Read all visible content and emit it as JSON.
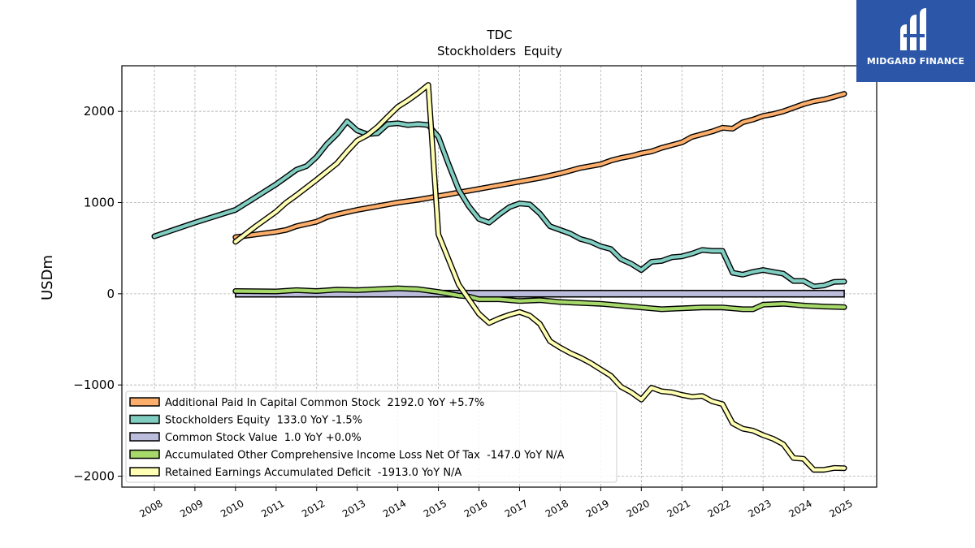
{
  "logo": {
    "text": "MIDGARD FINANCE",
    "icon": "midgard-logo-icon",
    "background": "#2c57a8"
  },
  "chart_data": {
    "type": "line",
    "title": "TDC",
    "subtitle": "Stockholders  Equity",
    "xlabel": "",
    "ylabel": "USDm",
    "xlim": [
      2007.2,
      2025.8
    ],
    "ylim": [
      -2120,
      2500
    ],
    "x_ticks": [
      "2008",
      "2009",
      "2010",
      "2011",
      "2012",
      "2013",
      "2014",
      "2015",
      "2016",
      "2017",
      "2018",
      "2019",
      "2020",
      "2021",
      "2022",
      "2023",
      "2024",
      "2025"
    ],
    "y_ticks": [
      2000,
      1000,
      0,
      -1000,
      -2000
    ],
    "y_tick_labels": [
      "2000",
      "1000",
      "0",
      "−1000",
      "−2000"
    ],
    "grid": true,
    "legend_position": "lower-left",
    "series": [
      {
        "name": "Additional Paid In Capital Common Stock  2192.0 YoY +5.7%",
        "color": "#fdae6b",
        "points": [
          [
            2010.0,
            620
          ],
          [
            2010.5,
            650
          ],
          [
            2011.0,
            680
          ],
          [
            2011.25,
            700
          ],
          [
            2011.5,
            740
          ],
          [
            2012.0,
            790
          ],
          [
            2012.25,
            840
          ],
          [
            2012.5,
            870
          ],
          [
            2012.75,
            895
          ],
          [
            2013.0,
            920
          ],
          [
            2013.5,
            960
          ],
          [
            2013.75,
            980
          ],
          [
            2014.0,
            1000
          ],
          [
            2014.5,
            1030
          ],
          [
            2014.75,
            1050
          ],
          [
            2015.0,
            1070
          ],
          [
            2015.25,
            1090
          ],
          [
            2015.5,
            1110
          ],
          [
            2015.75,
            1130
          ],
          [
            2016.0,
            1150
          ],
          [
            2016.25,
            1170
          ],
          [
            2016.5,
            1190
          ],
          [
            2016.75,
            1210
          ],
          [
            2017.0,
            1230
          ],
          [
            2017.5,
            1270
          ],
          [
            2018.0,
            1320
          ],
          [
            2018.25,
            1350
          ],
          [
            2018.5,
            1380
          ],
          [
            2018.75,
            1400
          ],
          [
            2019.0,
            1420
          ],
          [
            2019.25,
            1460
          ],
          [
            2019.5,
            1490
          ],
          [
            2019.75,
            1510
          ],
          [
            2020.0,
            1540
          ],
          [
            2020.25,
            1560
          ],
          [
            2020.5,
            1600
          ],
          [
            2021.0,
            1660
          ],
          [
            2021.25,
            1720
          ],
          [
            2021.5,
            1750
          ],
          [
            2021.75,
            1780
          ],
          [
            2022.0,
            1820
          ],
          [
            2022.25,
            1810
          ],
          [
            2022.5,
            1880
          ],
          [
            2022.75,
            1910
          ],
          [
            2023.0,
            1950
          ],
          [
            2023.25,
            1970
          ],
          [
            2023.5,
            2000
          ],
          [
            2023.75,
            2040
          ],
          [
            2024.0,
            2080
          ],
          [
            2024.25,
            2110
          ],
          [
            2024.5,
            2130
          ],
          [
            2024.75,
            2160
          ],
          [
            2025.0,
            2192
          ]
        ]
      },
      {
        "name": "Stockholders Equity  133.0 YoY -1.5%",
        "color": "#80cdc1",
        "points": [
          [
            2008.0,
            630
          ],
          [
            2009.0,
            780
          ],
          [
            2010.0,
            920
          ],
          [
            2010.5,
            1060
          ],
          [
            2011.0,
            1200
          ],
          [
            2011.25,
            1280
          ],
          [
            2011.5,
            1360
          ],
          [
            2011.75,
            1400
          ],
          [
            2012.0,
            1500
          ],
          [
            2012.25,
            1640
          ],
          [
            2012.5,
            1750
          ],
          [
            2012.75,
            1890
          ],
          [
            2013.0,
            1790
          ],
          [
            2013.25,
            1750
          ],
          [
            2013.5,
            1760
          ],
          [
            2013.75,
            1860
          ],
          [
            2014.0,
            1870
          ],
          [
            2014.25,
            1850
          ],
          [
            2014.5,
            1860
          ],
          [
            2014.75,
            1850
          ],
          [
            2015.0,
            1720
          ],
          [
            2015.25,
            1420
          ],
          [
            2015.5,
            1140
          ],
          [
            2015.75,
            960
          ],
          [
            2016.0,
            820
          ],
          [
            2016.25,
            780
          ],
          [
            2016.5,
            870
          ],
          [
            2016.75,
            950
          ],
          [
            2017.0,
            990
          ],
          [
            2017.25,
            980
          ],
          [
            2017.5,
            880
          ],
          [
            2017.75,
            740
          ],
          [
            2018.0,
            700
          ],
          [
            2018.25,
            660
          ],
          [
            2018.5,
            600
          ],
          [
            2018.75,
            570
          ],
          [
            2019.0,
            520
          ],
          [
            2019.25,
            490
          ],
          [
            2019.5,
            380
          ],
          [
            2019.75,
            330
          ],
          [
            2020.0,
            260
          ],
          [
            2020.25,
            350
          ],
          [
            2020.5,
            360
          ],
          [
            2020.75,
            400
          ],
          [
            2021.0,
            410
          ],
          [
            2021.25,
            440
          ],
          [
            2021.5,
            480
          ],
          [
            2021.75,
            470
          ],
          [
            2022.0,
            470
          ],
          [
            2022.25,
            230
          ],
          [
            2022.5,
            210
          ],
          [
            2022.75,
            240
          ],
          [
            2023.0,
            260
          ],
          [
            2023.25,
            240
          ],
          [
            2023.5,
            220
          ],
          [
            2023.75,
            140
          ],
          [
            2024.0,
            140
          ],
          [
            2024.25,
            80
          ],
          [
            2024.5,
            90
          ],
          [
            2024.75,
            130
          ],
          [
            2025.0,
            133
          ]
        ]
      },
      {
        "name": "Common Stock Value  1.0 YoY +0.0%",
        "color": "#bcbddc",
        "points": [
          [
            2010.0,
            1
          ],
          [
            2025.0,
            1
          ]
        ]
      },
      {
        "name": "Accumulated Other Comprehensive Income Loss Net Of Tax  -147.0 YoY N/A",
        "color": "#a6d96a",
        "points": [
          [
            2010.0,
            30
          ],
          [
            2011.0,
            25
          ],
          [
            2011.5,
            40
          ],
          [
            2012.0,
            30
          ],
          [
            2012.5,
            45
          ],
          [
            2013.0,
            40
          ],
          [
            2013.5,
            50
          ],
          [
            2014.0,
            60
          ],
          [
            2014.5,
            50
          ],
          [
            2015.0,
            20
          ],
          [
            2015.25,
            0
          ],
          [
            2015.5,
            -20
          ],
          [
            2015.75,
            -30
          ],
          [
            2016.0,
            -60
          ],
          [
            2016.5,
            -60
          ],
          [
            2017.0,
            -80
          ],
          [
            2017.5,
            -70
          ],
          [
            2018.0,
            -90
          ],
          [
            2018.5,
            -100
          ],
          [
            2019.0,
            -110
          ],
          [
            2019.5,
            -130
          ],
          [
            2020.0,
            -150
          ],
          [
            2020.5,
            -170
          ],
          [
            2021.0,
            -160
          ],
          [
            2021.5,
            -150
          ],
          [
            2022.0,
            -150
          ],
          [
            2022.25,
            -160
          ],
          [
            2022.5,
            -170
          ],
          [
            2022.75,
            -170
          ],
          [
            2023.0,
            -120
          ],
          [
            2023.5,
            -110
          ],
          [
            2024.0,
            -130
          ],
          [
            2024.5,
            -140
          ],
          [
            2025.0,
            -147
          ]
        ]
      },
      {
        "name": "Retained Earnings Accumulated Deficit  -1913.0 YoY N/A",
        "color": "#ffffb3",
        "points": [
          [
            2010.0,
            570
          ],
          [
            2010.5,
            740
          ],
          [
            2011.0,
            900
          ],
          [
            2011.25,
            1000
          ],
          [
            2011.5,
            1080
          ],
          [
            2012.0,
            1250
          ],
          [
            2012.5,
            1430
          ],
          [
            2012.75,
            1560
          ],
          [
            2013.0,
            1680
          ],
          [
            2013.25,
            1740
          ],
          [
            2013.5,
            1830
          ],
          [
            2013.75,
            1940
          ],
          [
            2014.0,
            2050
          ],
          [
            2014.25,
            2120
          ],
          [
            2014.5,
            2200
          ],
          [
            2014.75,
            2290
          ],
          [
            2015.0,
            650
          ],
          [
            2015.5,
            100
          ],
          [
            2016.0,
            -220
          ],
          [
            2016.25,
            -320
          ],
          [
            2016.5,
            -270
          ],
          [
            2016.75,
            -230
          ],
          [
            2017.0,
            -200
          ],
          [
            2017.25,
            -240
          ],
          [
            2017.5,
            -330
          ],
          [
            2017.75,
            -520
          ],
          [
            2018.0,
            -590
          ],
          [
            2018.25,
            -650
          ],
          [
            2018.5,
            -700
          ],
          [
            2018.75,
            -760
          ],
          [
            2019.0,
            -830
          ],
          [
            2019.25,
            -900
          ],
          [
            2019.5,
            -1020
          ],
          [
            2019.75,
            -1080
          ],
          [
            2020.0,
            -1160
          ],
          [
            2020.25,
            -1030
          ],
          [
            2020.5,
            -1070
          ],
          [
            2020.75,
            -1080
          ],
          [
            2021.0,
            -1110
          ],
          [
            2021.25,
            -1130
          ],
          [
            2021.5,
            -1120
          ],
          [
            2021.75,
            -1180
          ],
          [
            2022.0,
            -1210
          ],
          [
            2022.25,
            -1420
          ],
          [
            2022.5,
            -1480
          ],
          [
            2022.75,
            -1500
          ],
          [
            2023.0,
            -1550
          ],
          [
            2023.25,
            -1590
          ],
          [
            2023.5,
            -1650
          ],
          [
            2023.75,
            -1800
          ],
          [
            2024.0,
            -1810
          ],
          [
            2024.25,
            -1930
          ],
          [
            2024.5,
            -1930
          ],
          [
            2024.75,
            -1910
          ],
          [
            2025.0,
            -1913
          ]
        ]
      }
    ]
  }
}
